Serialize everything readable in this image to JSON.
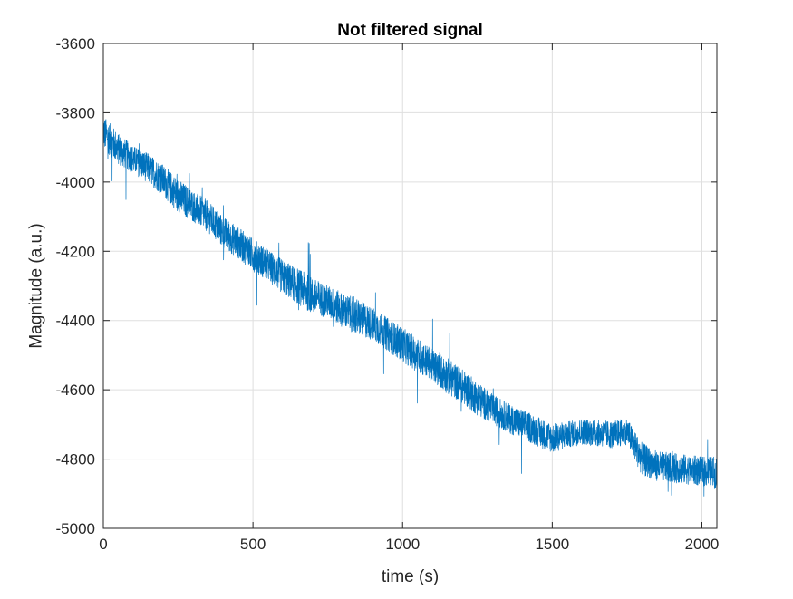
{
  "chart_data": {
    "type": "line",
    "title": "Not filtered signal",
    "xlabel": "time (s)",
    "ylabel": "Magnitude (a.u.)",
    "xlim": [
      0,
      2050
    ],
    "ylim": [
      -5000,
      -3600
    ],
    "xticks": [
      0,
      500,
      1000,
      1500,
      2000
    ],
    "yticks": [
      -3600,
      -3800,
      -4000,
      -4200,
      -4400,
      -4600,
      -4800,
      -5000
    ],
    "grid": true,
    "legend": "none",
    "series": [
      {
        "color": "#0072BD",
        "x": [
          0,
          50,
          100,
          150,
          200,
          250,
          300,
          350,
          400,
          450,
          500,
          550,
          600,
          650,
          700,
          750,
          800,
          850,
          900,
          950,
          1000,
          1050,
          1100,
          1150,
          1200,
          1250,
          1300,
          1350,
          1400,
          1450,
          1500,
          1550,
          1600,
          1650,
          1700,
          1750,
          1800,
          1850,
          1900,
          1950,
          2000,
          2050
        ],
        "mean": [
          -3855,
          -3905,
          -3935,
          -3960,
          -3995,
          -4040,
          -4070,
          -4100,
          -4145,
          -4175,
          -4210,
          -4240,
          -4275,
          -4300,
          -4330,
          -4345,
          -4370,
          -4390,
          -4410,
          -4440,
          -4470,
          -4500,
          -4530,
          -4560,
          -4590,
          -4625,
          -4655,
          -4680,
          -4700,
          -4720,
          -4740,
          -4730,
          -4720,
          -4725,
          -4730,
          -4720,
          -4800,
          -4820,
          -4825,
          -4830,
          -4835,
          -4840
        ],
        "spread": [
          50,
          48,
          42,
          45,
          48,
          52,
          48,
          48,
          48,
          48,
          50,
          48,
          52,
          55,
          55,
          50,
          52,
          55,
          50,
          50,
          52,
          52,
          50,
          55,
          52,
          52,
          45,
          45,
          45,
          45,
          45,
          40,
          40,
          40,
          42,
          40,
          50,
          45,
          45,
          45,
          45,
          50
        ]
      }
    ]
  }
}
